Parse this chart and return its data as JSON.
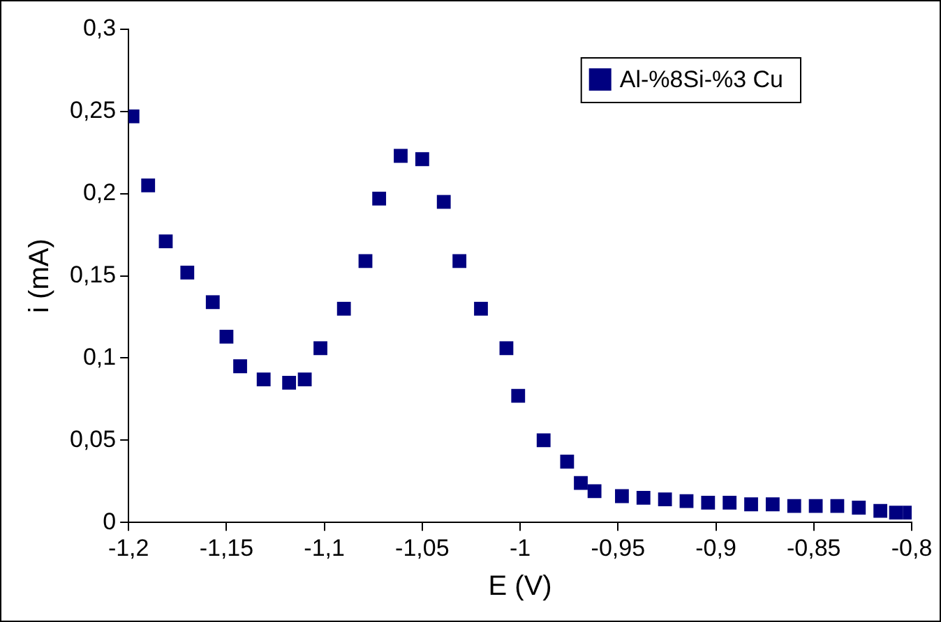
{
  "chart_data": {
    "type": "scatter",
    "xlabel": "E (V)",
    "ylabel": "i (mA)",
    "xlim": [
      -1.2,
      -0.8
    ],
    "xticks": [
      {
        "value": -1.2,
        "label": "-1,2"
      },
      {
        "value": -1.15,
        "label": "-1,15"
      },
      {
        "value": -1.1,
        "label": "-1,1"
      },
      {
        "value": -1.05,
        "label": "-1,05"
      },
      {
        "value": -1.0,
        "label": "-1"
      },
      {
        "value": -0.95,
        "label": "-0,95"
      },
      {
        "value": -0.9,
        "label": "-0,9"
      },
      {
        "value": -0.85,
        "label": "-0,85"
      },
      {
        "value": -0.8,
        "label": "-0,8"
      }
    ],
    "ylim": [
      0,
      0.3
    ],
    "yticks": [
      {
        "value": 0,
        "label": "0"
      },
      {
        "value": 0.05,
        "label": "0,05"
      },
      {
        "value": 0.1,
        "label": "0,1"
      },
      {
        "value": 0.15,
        "label": "0,15"
      },
      {
        "value": 0.2,
        "label": "0,2"
      },
      {
        "value": 0.25,
        "label": "0,25"
      },
      {
        "value": 0.3,
        "label": "0,3"
      }
    ],
    "grid": false,
    "legend": "top right",
    "marker": "square",
    "series": [
      {
        "name": "Al-%8Si-%3 Cu",
        "color": "#000080",
        "x": [
          -1.198,
          -1.19,
          -1.181,
          -1.17,
          -1.157,
          -1.15,
          -1.143,
          -1.131,
          -1.118,
          -1.11,
          -1.102,
          -1.09,
          -1.079,
          -1.072,
          -1.061,
          -1.05,
          -1.039,
          -1.031,
          -1.02,
          -1.007,
          -1.001,
          -0.988,
          -0.976,
          -0.969,
          -0.962,
          -0.948,
          -0.937,
          -0.926,
          -0.915,
          -0.904,
          -0.893,
          -0.882,
          -0.871,
          -0.86,
          -0.849,
          -0.838,
          -0.827,
          -0.816,
          -0.808,
          -0.801
        ],
        "values": [
          0.247,
          0.205,
          0.171,
          0.152,
          0.134,
          0.113,
          0.095,
          0.087,
          0.085,
          0.087,
          0.106,
          0.13,
          0.159,
          0.197,
          0.223,
          0.221,
          0.195,
          0.159,
          0.13,
          0.106,
          0.077,
          0.05,
          0.037,
          0.024,
          0.019,
          0.016,
          0.015,
          0.014,
          0.013,
          0.012,
          0.012,
          0.011,
          0.011,
          0.01,
          0.01,
          0.01,
          0.009,
          0.007,
          0.006,
          0.006
        ]
      }
    ]
  }
}
